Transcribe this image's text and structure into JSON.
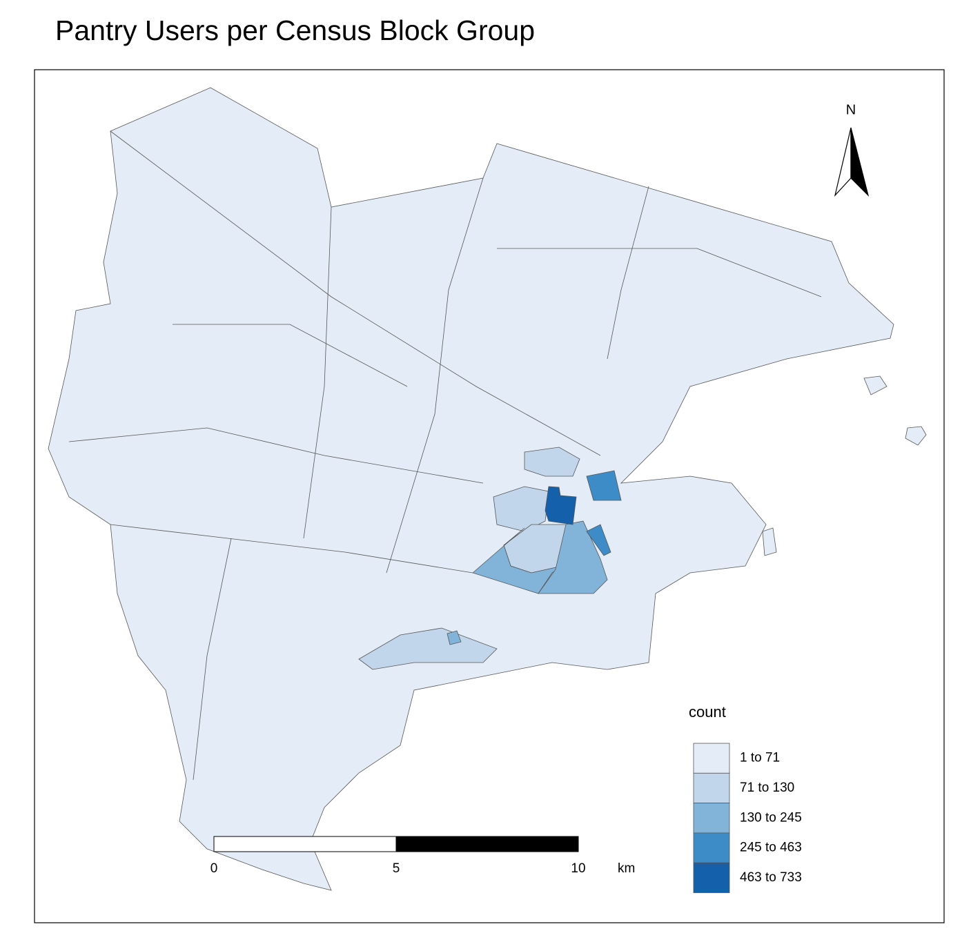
{
  "header": {
    "title": "Pantry Users per Census Block Group"
  },
  "north_arrow": {
    "label": "N"
  },
  "legend": {
    "title": "count",
    "items": [
      {
        "label": "1 to 71",
        "color": "#e3ecf7"
      },
      {
        "label": "71 to 130",
        "color": "#c2d6eb"
      },
      {
        "label": "130 to 245",
        "color": "#82b4d9"
      },
      {
        "label": "245 to 463",
        "color": "#3d8cc8"
      },
      {
        "label": "463 to 733",
        "color": "#1560ab"
      }
    ]
  },
  "scale_bar": {
    "ticks": [
      0,
      5,
      10
    ],
    "unit": "km"
  }
}
